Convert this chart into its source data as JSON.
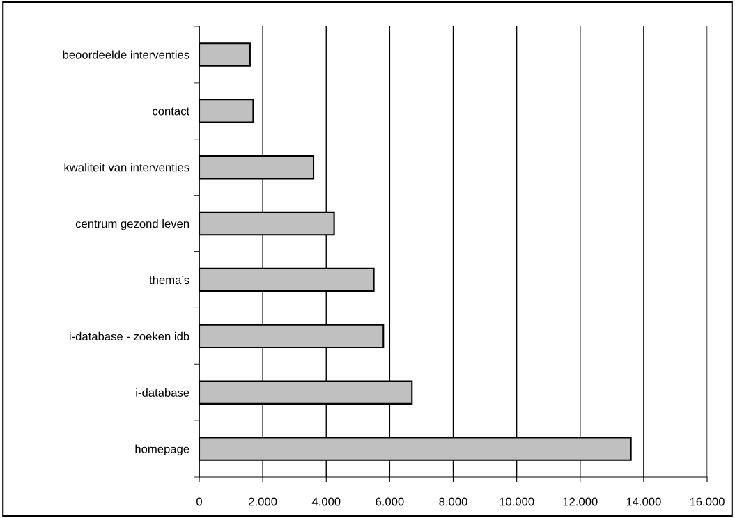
{
  "chart_data": {
    "type": "bar",
    "orientation": "horizontal",
    "categories": [
      "beoordeelde interventies",
      "contact",
      "kwaliteit van interventies",
      "centrum gezond leven",
      "thema’s",
      "i-database - zoeken idb",
      "i-database",
      "homepage"
    ],
    "values": [
      1600,
      1700,
      3600,
      4250,
      5500,
      5800,
      6700,
      13600
    ],
    "color": "#c0c0c0",
    "xlim": [
      0,
      16000
    ],
    "xticks": [
      0,
      {
        "value": 2000,
        "label": "2.000"
      },
      {
        "value": 4000,
        "label": "4.000"
      },
      {
        "value": 6000,
        "label": "6.000"
      },
      {
        "value": 8000,
        "label": "8.000"
      },
      {
        "value": 10000,
        "label": "10.000"
      },
      {
        "value": 12000,
        "label": "12.000"
      },
      {
        "value": 14000,
        "label": "14.000"
      },
      {
        "value": 16000,
        "label": "16.000"
      }
    ],
    "grid": "x"
  }
}
